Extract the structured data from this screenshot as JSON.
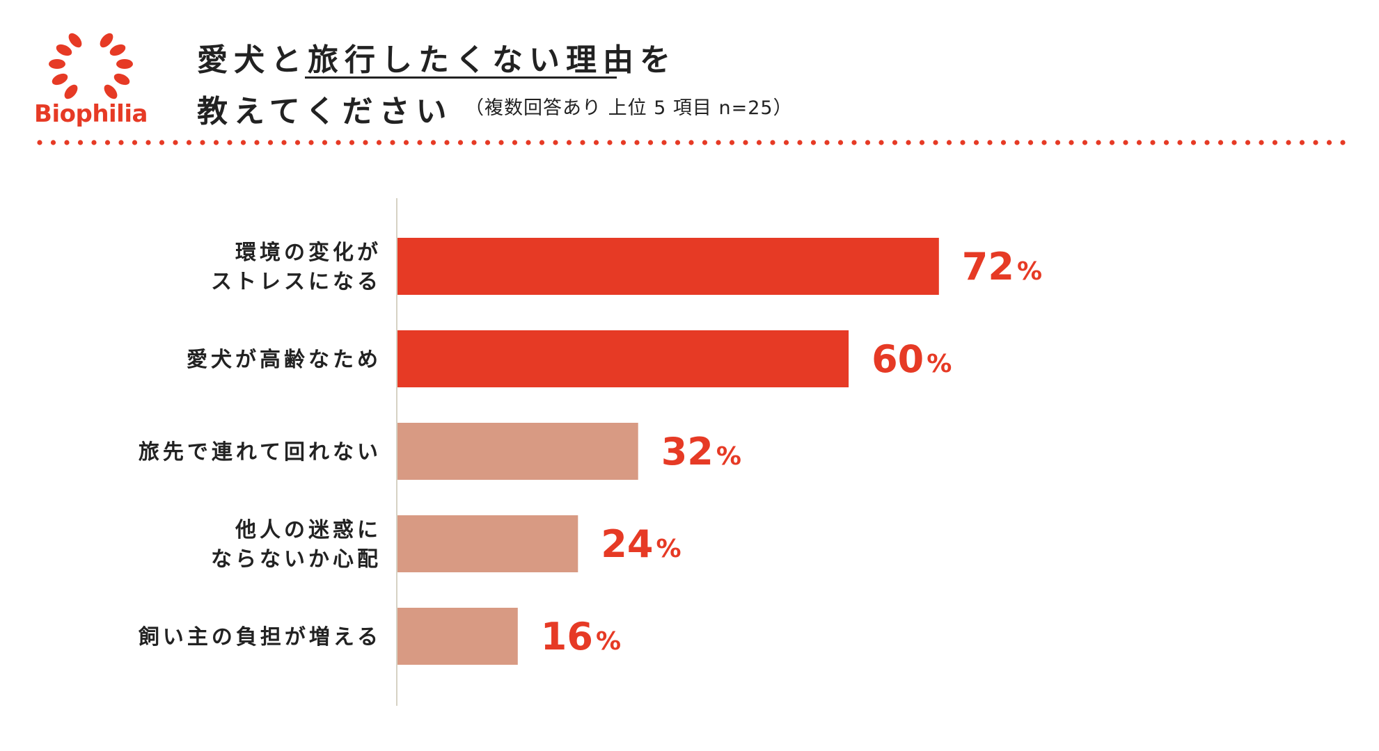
{
  "brand": {
    "name": "Biophilia",
    "color": "#e63a25",
    "icon": "laurel-wreath-icon"
  },
  "header": {
    "title_line1": "愛犬と旅行したくない理由を",
    "title_line2": "教えてください",
    "subtitle": "（複数回答あり 上位 5 項目 n=25）"
  },
  "colors": {
    "accent": "#e63a25",
    "bar_highlight": "#e63a25",
    "bar_muted": "#d89a83",
    "axis": "#d6d2c4",
    "text": "#222222"
  },
  "chart_data": {
    "type": "bar",
    "orientation": "horizontal",
    "categories": [
      [
        "環境の変化が",
        "ストレスになる"
      ],
      [
        "愛犬が高齢なため"
      ],
      [
        "旅先で連れて回れない"
      ],
      [
        "他人の迷惑に",
        "ならないか心配"
      ],
      [
        "飼い主の負担が増える"
      ]
    ],
    "values": [
      72,
      60,
      32,
      24,
      16
    ],
    "value_suffix": "%",
    "highlighted": [
      true,
      true,
      false,
      false,
      false
    ],
    "xlim": [
      0,
      100
    ],
    "grid": false,
    "legend": "none",
    "title": "",
    "xlabel": "",
    "ylabel": ""
  }
}
